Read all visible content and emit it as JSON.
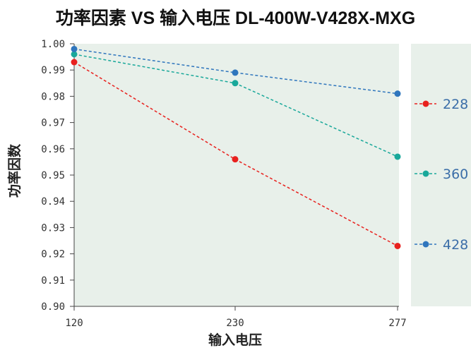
{
  "title": "功率因素 VS 输入电压 DL-400W-V428X-MXG",
  "chart_data": {
    "type": "line",
    "title": "功率因素 VS 输入电压 DL-400W-V428X-MXG",
    "xlabel": "输入电压",
    "ylabel": "功率因数",
    "categories": [
      "120",
      "230",
      "277"
    ],
    "ylim": [
      0.9,
      1.0
    ],
    "yticks": [
      "0.90",
      "0.91",
      "0.92",
      "0.93",
      "0.94",
      "0.95",
      "0.96",
      "0.97",
      "0.98",
      "0.99",
      "1.00"
    ],
    "grid": false,
    "legend_position": "right",
    "background_color": "#e8f0ea",
    "series": [
      {
        "name": "228",
        "color": "#e8211e",
        "values": [
          0.993,
          0.956,
          0.923
        ]
      },
      {
        "name": "360",
        "color": "#19a89a",
        "values": [
          0.996,
          0.985,
          0.957
        ]
      },
      {
        "name": "428",
        "color": "#2f76bd",
        "values": [
          0.998,
          0.989,
          0.981
        ]
      }
    ]
  }
}
